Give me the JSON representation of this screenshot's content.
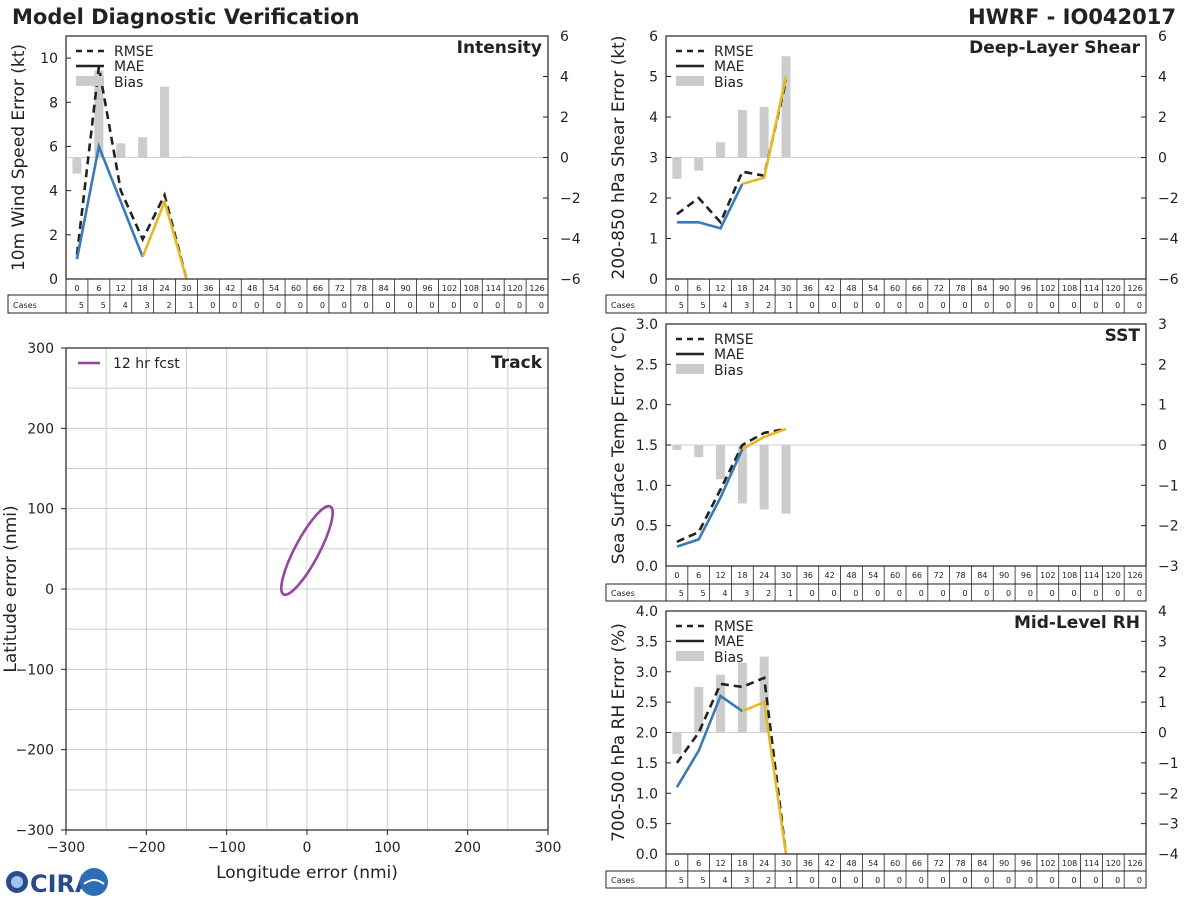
{
  "header": {
    "title": "Model Diagnostic Verification",
    "storm": "HWRF - IO042017"
  },
  "logo": {
    "text": "CIRA"
  },
  "colors": {
    "rmse": "#222222",
    "mae_early": "#3a7ab8",
    "mae_late": "#e5b822",
    "bias": "#cccccc",
    "track": "#94479e",
    "grid": "#cccccc"
  },
  "chart_data": [
    {
      "id": "intensity",
      "type": "line",
      "title": "Intensity",
      "ylabel": "10m Wind Speed Error (kt)",
      "ylim": [
        0,
        11
      ],
      "yticks": [
        0,
        2,
        4,
        6,
        8,
        10
      ],
      "y2lim": [
        -6,
        6
      ],
      "y2ticks": [
        -6,
        -4,
        -2,
        0,
        2,
        4,
        6
      ],
      "legend": [
        "RMSE",
        "MAE",
        "Bias"
      ],
      "x": [
        0,
        6,
        12,
        18,
        24,
        30
      ],
      "series": [
        {
          "name": "RMSE",
          "values": [
            1.1,
            9.6,
            4.0,
            1.8,
            3.8,
            0.0
          ]
        },
        {
          "name": "MAE",
          "values": [
            0.9,
            6.0,
            3.5,
            1.0,
            3.5,
            0.0
          ]
        },
        {
          "name": "Bias",
          "values": [
            -0.8,
            4.3,
            0.7,
            1.0,
            3.5,
            0.05
          ]
        }
      ],
      "leadtimes": [
        "0",
        "6",
        "12",
        "18",
        "24",
        "30",
        "36",
        "42",
        "48",
        "54",
        "60",
        "66",
        "72",
        "78",
        "84",
        "90",
        "96",
        "102",
        "108",
        "114",
        "120",
        "126"
      ],
      "cases_label": "Cases",
      "cases": [
        "5",
        "5",
        "4",
        "3",
        "2",
        "1",
        "0",
        "0",
        "0",
        "0",
        "0",
        "0",
        "0",
        "0",
        "0",
        "0",
        "0",
        "0",
        "0",
        "0",
        "0",
        "0"
      ]
    },
    {
      "id": "shear",
      "type": "line",
      "title": "Deep-Layer Shear",
      "ylabel": "200-850 hPa Shear Error (kt)",
      "ylim": [
        0,
        6
      ],
      "yticks": [
        0,
        1,
        2,
        3,
        4,
        5,
        6
      ],
      "y2lim": [
        -6,
        6
      ],
      "y2ticks": [
        -6,
        -4,
        -2,
        0,
        2,
        4,
        6
      ],
      "legend": [
        "RMSE",
        "MAE",
        "Bias"
      ],
      "x": [
        0,
        6,
        12,
        18,
        24,
        30
      ],
      "series": [
        {
          "name": "RMSE",
          "values": [
            1.6,
            2.0,
            1.4,
            2.65,
            2.55,
            4.9
          ]
        },
        {
          "name": "MAE",
          "values": [
            1.4,
            1.4,
            1.25,
            2.35,
            2.5,
            5.0
          ]
        },
        {
          "name": "Bias",
          "values": [
            -1.05,
            -0.65,
            0.75,
            2.35,
            2.5,
            5.0
          ]
        }
      ],
      "leadtimes": [
        "0",
        "6",
        "12",
        "18",
        "24",
        "30",
        "36",
        "42",
        "48",
        "54",
        "60",
        "66",
        "72",
        "78",
        "84",
        "90",
        "96",
        "102",
        "108",
        "114",
        "120",
        "126"
      ],
      "cases_label": "Cases",
      "cases": [
        "5",
        "5",
        "4",
        "3",
        "2",
        "1",
        "0",
        "0",
        "0",
        "0",
        "0",
        "0",
        "0",
        "0",
        "0",
        "0",
        "0",
        "0",
        "0",
        "0",
        "0",
        "0"
      ]
    },
    {
      "id": "sst",
      "type": "line",
      "title": "SST",
      "ylabel": "Sea Surface Temp Error (°C)",
      "ylim": [
        0,
        3
      ],
      "yticks": [
        0.0,
        0.5,
        1.0,
        1.5,
        2.0,
        2.5,
        3.0
      ],
      "ytick_labels": [
        "0.0",
        "0.5",
        "1.0",
        "1.5",
        "2.0",
        "2.5",
        "3.0"
      ],
      "y2lim": [
        -3,
        3
      ],
      "y2ticks": [
        -3,
        -2,
        -1,
        0,
        1,
        2,
        3
      ],
      "legend": [
        "RMSE",
        "MAE",
        "Bias"
      ],
      "x": [
        0,
        6,
        12,
        18,
        24,
        30
      ],
      "series": [
        {
          "name": "RMSE",
          "values": [
            0.3,
            0.42,
            0.95,
            1.5,
            1.65,
            1.7
          ]
        },
        {
          "name": "MAE",
          "values": [
            0.24,
            0.33,
            0.85,
            1.45,
            1.6,
            1.7
          ]
        },
        {
          "name": "Bias",
          "values": [
            -0.12,
            -0.3,
            -0.85,
            -1.45,
            -1.6,
            -1.7
          ]
        }
      ],
      "leadtimes": [
        "0",
        "6",
        "12",
        "18",
        "24",
        "30",
        "36",
        "42",
        "48",
        "54",
        "60",
        "66",
        "72",
        "78",
        "84",
        "90",
        "96",
        "102",
        "108",
        "114",
        "120",
        "126"
      ],
      "cases_label": "Cases",
      "cases": [
        "5",
        "5",
        "4",
        "3",
        "2",
        "1",
        "0",
        "0",
        "0",
        "0",
        "0",
        "0",
        "0",
        "0",
        "0",
        "0",
        "0",
        "0",
        "0",
        "0",
        "0",
        "0"
      ]
    },
    {
      "id": "rh",
      "type": "line",
      "title": "Mid-Level RH",
      "ylabel": "700-500 hPa RH Error (%)",
      "ylim": [
        0,
        4
      ],
      "yticks": [
        0.0,
        0.5,
        1.0,
        1.5,
        2.0,
        2.5,
        3.0,
        3.5,
        4.0
      ],
      "ytick_labels": [
        "0.0",
        "0.5",
        "1.0",
        "1.5",
        "2.0",
        "2.5",
        "3.0",
        "3.5",
        "4.0"
      ],
      "y2lim": [
        -4,
        4
      ],
      "y2ticks": [
        -4,
        -3,
        -2,
        -1,
        0,
        1,
        2,
        3,
        4
      ],
      "legend": [
        "RMSE",
        "MAE",
        "Bias"
      ],
      "x": [
        0,
        6,
        12,
        18,
        24,
        30
      ],
      "series": [
        {
          "name": "RMSE",
          "values": [
            1.5,
            2.0,
            2.8,
            2.75,
            2.9,
            0.0
          ]
        },
        {
          "name": "MAE",
          "values": [
            1.1,
            1.7,
            2.6,
            2.35,
            2.5,
            0.0
          ]
        },
        {
          "name": "Bias",
          "values": [
            -0.7,
            1.5,
            1.9,
            2.3,
            2.5,
            0.02
          ]
        }
      ],
      "leadtimes": [
        "0",
        "6",
        "12",
        "18",
        "24",
        "30",
        "36",
        "42",
        "48",
        "54",
        "60",
        "66",
        "72",
        "78",
        "84",
        "90",
        "96",
        "102",
        "108",
        "114",
        "120",
        "126"
      ],
      "cases_label": "Cases",
      "cases": [
        "5",
        "5",
        "4",
        "3",
        "2",
        "1",
        "0",
        "0",
        "0",
        "0",
        "0",
        "0",
        "0",
        "0",
        "0",
        "0",
        "0",
        "0",
        "0",
        "0",
        "0",
        "0"
      ]
    },
    {
      "id": "track",
      "type": "scatter",
      "title": "Track",
      "xlabel": "Longitude error (nmi)",
      "ylabel": "Latitude error (nmi)",
      "xlim": [
        -300,
        300
      ],
      "ylim": [
        -300,
        300
      ],
      "xticks": [
        -300,
        -200,
        -100,
        0,
        100,
        200,
        300
      ],
      "xtick_labels": [
        "−300",
        "−200",
        "−100",
        "0",
        "100",
        "200",
        "300"
      ],
      "yticks": [
        -300,
        -200,
        -100,
        0,
        100,
        200,
        300
      ],
      "ytick_labels": [
        "−300",
        "−200",
        "−100",
        "0",
        "100",
        "200",
        "300"
      ],
      "legend": [
        "12 hr fcst"
      ],
      "ellipse": {
        "center": [
          0,
          48
        ],
        "semi_major": 62,
        "semi_minor": 15,
        "angle_deg": 62
      }
    }
  ]
}
